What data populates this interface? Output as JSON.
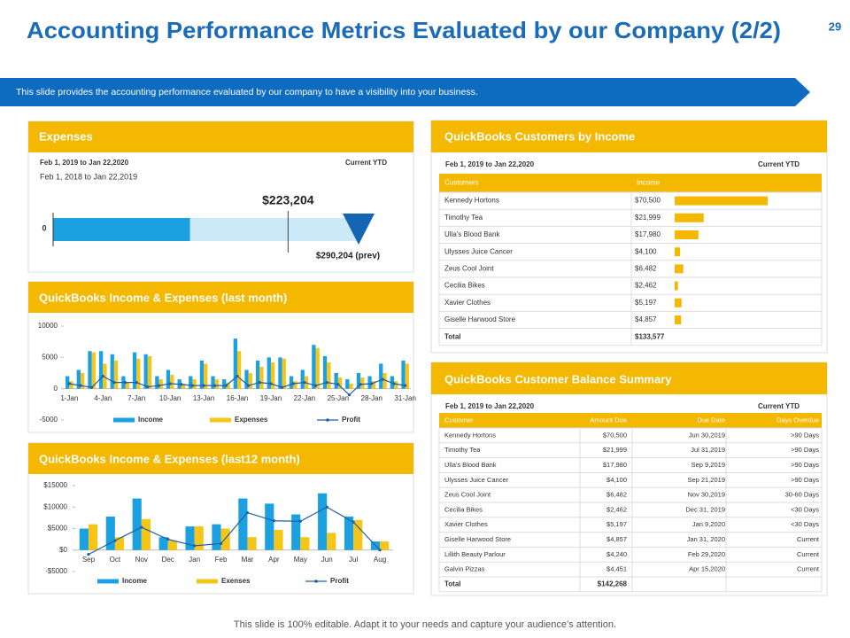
{
  "header": {
    "title": "Accounting Performance Metrics Evaluated by our Company (2/2)",
    "page_number": "29",
    "banner": "This slide provides the accounting performance evaluated by our company to have a visibility into your business."
  },
  "footer": "This slide is 100% editable. Adapt it to your needs and capture your audience’s attention.",
  "expenses": {
    "title": "Expenses",
    "period": "Feb 1, 2019 to Jan 22,2020",
    "period_label": "Current YTD",
    "previous_period": "Feb 1, 2018 to Jan 22,2019",
    "zero_label": "0",
    "fill": 130000,
    "current": 223204,
    "current_label": "$223,204",
    "previous": 290204,
    "previous_label": "$290,204 (prev)"
  },
  "chart_data": [
    {
      "type": "bar",
      "title": "QuickBooks Income & Expenses (last month)",
      "categories": [
        "1-Jan",
        null,
        null,
        "4-Jan",
        null,
        null,
        "7-Jan",
        null,
        null,
        "10-Jan",
        null,
        null,
        "13-Jan",
        null,
        null,
        "16-Jan",
        null,
        null,
        "19-Jan",
        null,
        null,
        "22-Jan",
        null,
        null,
        "25-Jan",
        null,
        null,
        "28-Jan",
        null,
        null,
        "31-Jan"
      ],
      "ylim": [
        -5000,
        10000
      ],
      "yticks": [
        10000,
        5000,
        0,
        -5000
      ],
      "series": [
        {
          "name": "Income",
          "color": "#1ba1e2",
          "values": [
            2000,
            3000,
            6000,
            6000,
            5500,
            2000,
            5800,
            5500,
            2000,
            3000,
            1500,
            2000,
            4500,
            2000,
            1500,
            8000,
            3000,
            4500,
            5000,
            5000,
            2000,
            3000,
            7000,
            5200,
            2500,
            1500,
            2500,
            2000,
            4000,
            2000,
            4500
          ]
        },
        {
          "name": "Expenses",
          "color": "#f5c518",
          "values": [
            1200,
            2500,
            5800,
            4000,
            4500,
            1000,
            4800,
            5200,
            1500,
            2200,
            800,
            1500,
            4000,
            1500,
            1000,
            6000,
            2500,
            3500,
            4200,
            4800,
            1200,
            2000,
            6500,
            4200,
            1800,
            800,
            1800,
            1200,
            2500,
            1200,
            4000
          ]
        },
        {
          "name": "Profit",
          "color": "#1f5fa6",
          "type": "line",
          "values": [
            800,
            500,
            200,
            2000,
            1000,
            1000,
            1000,
            300,
            500,
            800,
            700,
            500,
            500,
            500,
            500,
            2000,
            500,
            1000,
            800,
            200,
            800,
            1000,
            500,
            1000,
            700,
            -1000,
            700,
            800,
            1500,
            800,
            500
          ]
        }
      ]
    },
    {
      "type": "bar",
      "title": "QuickBooks Income & Expenses (last12 month)",
      "categories": [
        "Sep",
        "Oct",
        "Nov",
        "Dec",
        "Jan",
        "Feb",
        "Mar",
        "Apr",
        "May",
        "Jun",
        "Jul",
        "Aug"
      ],
      "ylim": [
        -5000,
        15000
      ],
      "yticks": [
        {
          "value": 15000,
          "label": "$15000"
        },
        {
          "value": 10000,
          "label": "$10000"
        },
        {
          "value": 5000,
          "label": "$5000"
        },
        {
          "value": 0,
          "label": "$0"
        },
        {
          "value": -5000,
          "label": "-$5000"
        }
      ],
      "series": [
        {
          "name": "Income",
          "color": "#1ba1e2",
          "values": [
            5000,
            7800,
            12000,
            3000,
            5500,
            6000,
            12000,
            10800,
            8300,
            13200,
            7800,
            2000
          ]
        },
        {
          "name": "Exenses",
          "color": "#f5c518",
          "values": [
            6000,
            3000,
            7200,
            2200,
            5500,
            5000,
            3000,
            4700,
            3000,
            4000,
            7000,
            2000
          ]
        },
        {
          "name": "Profit",
          "color": "#1f5fa6",
          "type": "line",
          "values": [
            -1000,
            2200,
            5300,
            2500,
            1000,
            1500,
            8700,
            6800,
            6700,
            10000,
            6500,
            0
          ]
        }
      ]
    }
  ],
  "customers_by_income": {
    "title": "QuickBooks Customers by Income",
    "period": "Feb 1, 2019 to Jan 22,2020",
    "period_label": "Current YTD",
    "columns": [
      "Customers",
      "Income"
    ],
    "rows": [
      {
        "name": "Kennedy Hortons",
        "income": 70500,
        "income_label": "$70,500"
      },
      {
        "name": "Timothy Tea",
        "income": 21999,
        "income_label": "$21,999"
      },
      {
        "name": "Ulla's Blood Bank",
        "income": 17980,
        "income_label": "$17,980"
      },
      {
        "name": "Ulysses Juice Cancer",
        "income": 4100,
        "income_label": "$4,100"
      },
      {
        "name": "Zeus Cool Joint",
        "income": 6482,
        "income_label": "$6,482"
      },
      {
        "name": "Cecilia Bikes",
        "income": 2462,
        "income_label": "$2,462"
      },
      {
        "name": "Xavier Clothes",
        "income": 5197,
        "income_label": "$5,197"
      },
      {
        "name": "Giselle Harwood Store",
        "income": 4857,
        "income_label": "$4,857"
      }
    ],
    "total": [
      "Total",
      "$133,577"
    ]
  },
  "balance_summary": {
    "title": "QuickBooks Customer Balance Summary",
    "period": "Feb 1, 2019 to Jan 22,2020",
    "period_label": "Current YTD",
    "columns": [
      "Customer",
      "Amount Due",
      "Due Date",
      "Days Overdue"
    ],
    "rows": [
      [
        "Kennedy  Hortons",
        "$70,500",
        "Jun 30,2019",
        ">90 Days"
      ],
      [
        "Timothy Tea",
        "$21,999",
        "Jul 31,2019",
        ">90 Days"
      ],
      [
        "Ulla's Blood Bank",
        "$17,980",
        "Sep 9,2019",
        ">90 Days"
      ],
      [
        "Ulysses Juice Cancer",
        "$4,100",
        "Sep 21,2019",
        ">90 Days"
      ],
      [
        "Zeus Cool Joint",
        "$6,482",
        "Nov 30,2019",
        "30-60 Days"
      ],
      [
        "Cecilia Bikes",
        "$2,462",
        "Dec 31,  2019",
        "<30 Days"
      ],
      [
        "Xavier Clothes",
        "$5,197",
        "Jan 9,2020",
        "<30 Days"
      ],
      [
        "Giselle Harwood Store",
        "$4,857",
        "Jan 31, 2020",
        "Current"
      ],
      [
        "Lillith Beauty Parlour",
        "$4,240",
        "Feb 29,2020",
        "Current"
      ],
      [
        "Galvin Pizzas",
        "$4,451",
        "Apr 15,2020",
        "Current"
      ]
    ],
    "total": [
      "Total",
      "$142,268"
    ]
  }
}
